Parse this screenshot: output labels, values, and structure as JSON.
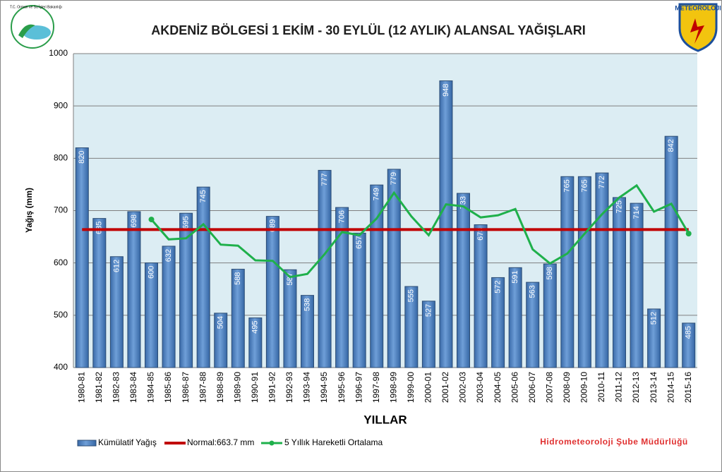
{
  "logos": {
    "left_text": "T.C. Orman ve Su İşleri Bakanlığı",
    "right_text": "METEOROLOJI"
  },
  "footer": "Hidrometeoroloji Şube Müdürlüğü",
  "chart_data": {
    "type": "bar",
    "title": "AKDENİZ BÖLGESİ  1 EKİM - 30 EYLÜL (12 AYLIK) ALANSAL YAĞIŞLARI",
    "x_label": "YILLAR",
    "y_label": "Yağış (mm)",
    "categories": [
      "1980-81",
      "1981-82",
      "1982-83",
      "1983-84",
      "1984-85",
      "1985-86",
      "1986-87",
      "1987-88",
      "1988-89",
      "1989-90",
      "1990-91",
      "1991-92",
      "1992-93",
      "1993-94",
      "1994-95",
      "1995-96",
      "1996-97",
      "1997-98",
      "1998-99",
      "1999-00",
      "2000-01",
      "2001-02",
      "2002-03",
      "2003-04",
      "2004-05",
      "2005-06",
      "2006-07",
      "2007-08",
      "2008-09",
      "2009-10",
      "2010-11",
      "2011-12",
      "2012-13",
      "2013-14",
      "2014-15",
      "2015-16"
    ],
    "series": [
      {
        "name": "Kümülatif Yağış",
        "color": "#4f81bd",
        "values": [
          820,
          685,
          612,
          698,
          600,
          632,
          695,
          745,
          504,
          588,
          495,
          689,
          587,
          538,
          777,
          706,
          657,
          749,
          779,
          555,
          527,
          948,
          733,
          673,
          572,
          591,
          563,
          598,
          765,
          765,
          772,
          725,
          714,
          512,
          842,
          485
        ]
      },
      {
        "name": "5 Yıllık Hareketli Ortalama",
        "color": "#1fb04b",
        "values": [
          null,
          null,
          null,
          null,
          683,
          645,
          647,
          674,
          635,
          633,
          605,
          604,
          573,
          579,
          617,
          659,
          653,
          685,
          734,
          689,
          653,
          712,
          708,
          687,
          691,
          703,
          626,
          599,
          618,
          656,
          693,
          725,
          748,
          698,
          713,
          656
        ]
      }
    ],
    "normal": {
      "name": "Normal:663.7 mm",
      "value": 663.7,
      "color": "#c00000"
    },
    "ylim": [
      400,
      1000
    ],
    "yticks": [
      400,
      500,
      600,
      700,
      800,
      900,
      1000
    ],
    "grid": true
  }
}
